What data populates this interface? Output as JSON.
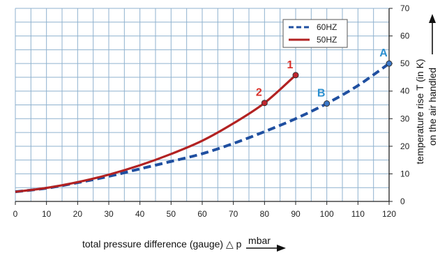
{
  "chart_data": {
    "type": "line",
    "xlabel": "total pressure difference (gauge) △ p",
    "xunit": "mbar",
    "ylabel_line1": "temperature rise T (in K)",
    "ylabel_line2": "on the air handled",
    "xlim": [
      0,
      120
    ],
    "ylim": [
      0,
      70
    ],
    "xticks": [
      0,
      10,
      20,
      30,
      40,
      50,
      60,
      70,
      80,
      90,
      100,
      110,
      120
    ],
    "yticks": [
      0,
      10,
      20,
      30,
      40,
      50,
      60,
      70
    ],
    "grid": true,
    "legend_position": "top-right",
    "series": [
      {
        "name": "60HZ",
        "color": "#1f4fa0",
        "style": "dashed",
        "x": [
          0,
          10,
          20,
          30,
          40,
          50,
          60,
          70,
          80,
          90,
          100,
          110,
          120
        ],
        "y": [
          3.5,
          4.8,
          6.8,
          9.1,
          11.8,
          14.5,
          17.3,
          21.0,
          25.3,
          30.0,
          35.5,
          42.0,
          50.0
        ]
      },
      {
        "name": "50HZ",
        "color": "#b22222",
        "style": "solid",
        "x": [
          0,
          10,
          20,
          30,
          40,
          50,
          60,
          70,
          80,
          90
        ],
        "y": [
          3.5,
          4.9,
          7.0,
          9.7,
          13.1,
          17.2,
          22.0,
          28.3,
          35.7,
          45.8
        ]
      }
    ],
    "markers": [
      {
        "label": "1",
        "x": 90,
        "y": 45.8,
        "label_color": "#d9302a",
        "fill": "#c0262e"
      },
      {
        "label": "2",
        "x": 80,
        "y": 35.7,
        "label_color": "#d9302a",
        "fill": "#c0262e"
      },
      {
        "label": "A",
        "x": 120,
        "y": 50.0,
        "label_color": "#2a8fd0",
        "fill": "#3b78c9"
      },
      {
        "label": "B",
        "x": 100,
        "y": 35.5,
        "label_color": "#2a8fd0",
        "fill": "#3b78c9"
      }
    ]
  }
}
